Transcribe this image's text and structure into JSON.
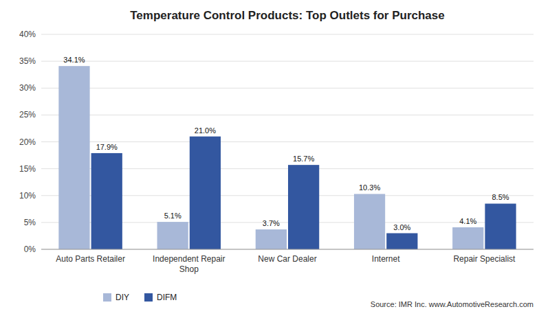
{
  "chart_data": {
    "type": "bar",
    "title": "Temperature Control Products: Top Outlets for Purchase",
    "categories": [
      "Auto Parts Retailer",
      "Independent Repair\nShop",
      "New Car Dealer",
      "Internet",
      "Repair Specialist"
    ],
    "series": [
      {
        "name": "DIY",
        "color": "#a8b8d8",
        "values": [
          34.1,
          5.1,
          3.7,
          10.3,
          4.1
        ],
        "value_labels": [
          "34.1%",
          "5.1%",
          "3.7%",
          "10.3%",
          "4.1%"
        ]
      },
      {
        "name": "DIFM",
        "color": "#3357a0",
        "values": [
          17.9,
          21.0,
          15.7,
          3.0,
          8.5
        ],
        "value_labels": [
          "17.9%",
          "21.0%",
          "15.7%",
          "3.0%",
          "8.5%"
        ]
      }
    ],
    "ylim": [
      0,
      40
    ],
    "yticks": [
      {
        "value": 0,
        "label": "0%"
      },
      {
        "value": 5,
        "label": "5%"
      },
      {
        "value": 10,
        "label": "10%"
      },
      {
        "value": 15,
        "label": "15%"
      },
      {
        "value": 20,
        "label": "20%"
      },
      {
        "value": 25,
        "label": "25%"
      },
      {
        "value": 30,
        "label": "30%"
      },
      {
        "value": 35,
        "label": "35%"
      },
      {
        "value": 40,
        "label": "40%"
      }
    ],
    "grid": true,
    "legend": "bottom",
    "data_labels": true,
    "annotations": [
      "Source: IMR Inc. www.AutomotiveResearch.com"
    ]
  }
}
